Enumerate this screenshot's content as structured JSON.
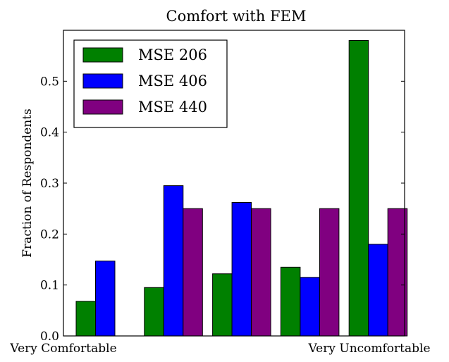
{
  "chart_data": {
    "type": "bar",
    "title": "Comfort with FEM",
    "xlabel": "",
    "ylabel": "Fraction of Respondents",
    "x_tick_labels": [
      "Very Comfortable",
      "Very Uncomfortable"
    ],
    "categories": [
      "1",
      "2",
      "3",
      "4",
      "5"
    ],
    "ylim": [
      0.0,
      0.6
    ],
    "y_ticks": [
      0.0,
      0.1,
      0.2,
      0.3,
      0.4,
      0.5
    ],
    "y_tick_labels": [
      "0.0",
      "0.1",
      "0.2",
      "0.3",
      "0.4",
      "0.5"
    ],
    "grid": false,
    "legend_position": "upper-left",
    "series": [
      {
        "name": "MSE 206",
        "color": "#008000",
        "values": [
          0.068,
          0.095,
          0.122,
          0.135,
          0.58
        ]
      },
      {
        "name": "MSE 406",
        "color": "#0000ff",
        "values": [
          0.147,
          0.295,
          0.262,
          0.115,
          0.18
        ]
      },
      {
        "name": "MSE 440",
        "color": "#800080",
        "values": [
          0.0,
          0.25,
          0.25,
          0.25,
          0.25
        ]
      }
    ]
  }
}
